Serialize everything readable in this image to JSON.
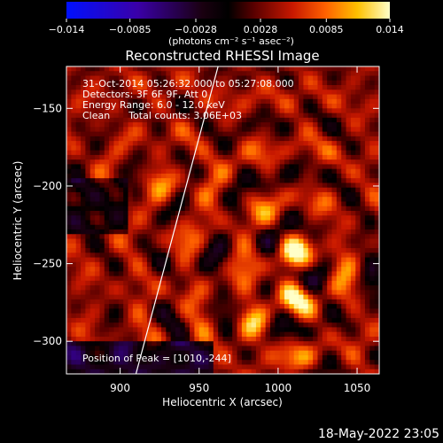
{
  "chart_data": {
    "type": "heatmap",
    "title": "Reconstructed RHESSI Image",
    "xlabel": "Heliocentric X (arcsec)",
    "ylabel": "Heliocentric Y (arcsec)",
    "xlim": [
      866,
      1064
    ],
    "ylim": [
      -321,
      -123
    ],
    "x_ticks": [
      900,
      950,
      1000,
      1050
    ],
    "y_ticks": [
      -150,
      -200,
      -250,
      -300
    ],
    "colorbar": {
      "range": [
        -0.014,
        0.014
      ],
      "ticks": [
        -0.014,
        -0.0085,
        -0.0028,
        0.0028,
        0.0085,
        0.014
      ],
      "tick_labels": [
        "−0.014",
        "−0.0085",
        "−0.0028",
        "0.0028",
        "0.0085",
        "0.014"
      ],
      "units_label": "(photons cm⁻² s⁻¹ asec⁻²)",
      "colormap": "rhessi-heat"
    },
    "annotations": {
      "time": "31-Oct-2014 05:26:32.000 to 05:27:08.000",
      "detectors": "Detectors: 3F 6F 9F, Att 0",
      "energy": "Energy Range: 6.0 - 12.0 keV",
      "clean": "Clean      Total counts: 3.06E+03",
      "peak": "Position of Peak = [1010,-244]"
    },
    "peak": [
      1010,
      -244
    ],
    "limb_line": [
      [
        910,
        -321
      ],
      [
        962,
        -123
      ]
    ],
    "sources": [
      {
        "x": 1010,
        "y": -244,
        "amp": 0.01
      },
      {
        "x": 985,
        "y": -288,
        "amp": 0.007
      },
      {
        "x": 1010,
        "y": -272,
        "amp": 0.006
      },
      {
        "x": 925,
        "y": -200,
        "amp": 0.004
      },
      {
        "x": 960,
        "y": -205,
        "amp": 0.003
      }
    ]
  },
  "footer": {
    "date": "18-May-2022 23:05"
  }
}
